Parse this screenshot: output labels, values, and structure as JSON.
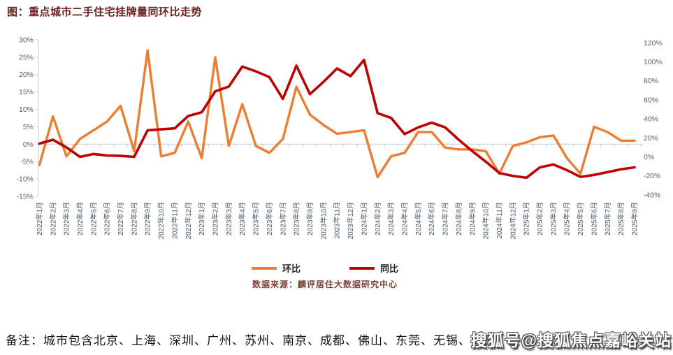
{
  "title": "图：重点城市二手住宅挂牌量同环比走势",
  "source": "数据来源：麟评居住大数据研究中心",
  "note": "备注：城市包含北京、上海、深圳、广州、苏州、南京、成都、佛山、东莞、无锡、青岛、厦门",
  "watermark": "搜狐号@搜狐焦点嘉峪关站",
  "colors": {
    "huanbi_line": "#ED7D31",
    "tongbi_line": "#C00000",
    "title_text": "#6B1F1F",
    "axis_text": "#595959",
    "x_label_text": "#44546A",
    "axis_line": "#C8CDD6"
  },
  "chart_data": {
    "type": "line",
    "title": "重点城市二手住宅挂牌量同环比走势",
    "legend_position": "bottom",
    "grid": "zero-line-only",
    "categories": [
      "2022年1月",
      "2022年2月",
      "2022年3月",
      "2022年4月",
      "2022年5月",
      "2022年6月",
      "2022年7月",
      "2022年8月",
      "2022年9月",
      "2022年10月",
      "2022年11月",
      "2022年12月",
      "2023年1月",
      "2023年2月",
      "2023年3月",
      "2023年4月",
      "2023年5月",
      "2023年6月",
      "2023年7月",
      "2023年8月",
      "2023年9月",
      "2023年10月",
      "2023年11月",
      "2023年12月",
      "2024年1月",
      "2024年2月",
      "2024年3月",
      "2024年4月",
      "2024年5月",
      "2024年6月",
      "2024年7月",
      "2024年8月",
      "2024年9月",
      "2024年10月",
      "2024年11月",
      "2024年12月",
      "2025年1月",
      "2025年2月",
      "2025年3月",
      "2025年4月",
      "2025年5月",
      "2025年6月",
      "2025年7月",
      "2025年8月",
      "2025年9月"
    ],
    "series": [
      {
        "name": "环比",
        "axis": "left",
        "color": "#ED7D31",
        "unit": "%",
        "values": [
          -6,
          8,
          -3.5,
          1.5,
          4,
          6.5,
          11,
          -2,
          27,
          -3.5,
          -2.5,
          6.5,
          -4,
          25,
          -0.5,
          11.5,
          -0.5,
          -2.5,
          1.5,
          16.5,
          8.5,
          5.5,
          3,
          3.5,
          4,
          -9.5,
          -3.5,
          -2.5,
          3.5,
          3.5,
          -1,
          -1.5,
          -1.5,
          -2,
          -8.5,
          -0.5,
          0.5,
          2,
          2.5,
          -4,
          -8.5,
          5,
          3.5,
          1,
          1
        ]
      },
      {
        "name": "同比",
        "axis": "right",
        "color": "#C00000",
        "unit": "%",
        "values": [
          14,
          18,
          10,
          0,
          3,
          1.5,
          1,
          0,
          28,
          29,
          30,
          43,
          47,
          69,
          74,
          95,
          90,
          84,
          61,
          96,
          66,
          79,
          93,
          85,
          102,
          46,
          41,
          24,
          31,
          36,
          31,
          18,
          6,
          -5,
          -17,
          -20,
          -22,
          -11,
          -8,
          -14,
          -21,
          -19,
          -16,
          -13,
          -11
        ]
      }
    ],
    "left_axis": {
      "min": -15,
      "max": 30,
      "step": 5,
      "unit": "%",
      "labels": [
        "30%",
        "25%",
        "20%",
        "15%",
        "10%",
        "5%",
        "0%",
        "-5%",
        "-10%",
        "-15%"
      ],
      "values": [
        30,
        25,
        20,
        15,
        10,
        5,
        0,
        -5,
        -10,
        -15
      ]
    },
    "right_axis": {
      "min": -40,
      "max": 120,
      "step": 20,
      "unit": "%",
      "labels": [
        "120%",
        "100%",
        "80%",
        "60%",
        "40%",
        "20%",
        "0%",
        "-20%",
        "-40%"
      ],
      "values": [
        120,
        100,
        80,
        60,
        40,
        20,
        0,
        -20,
        -40
      ]
    }
  }
}
